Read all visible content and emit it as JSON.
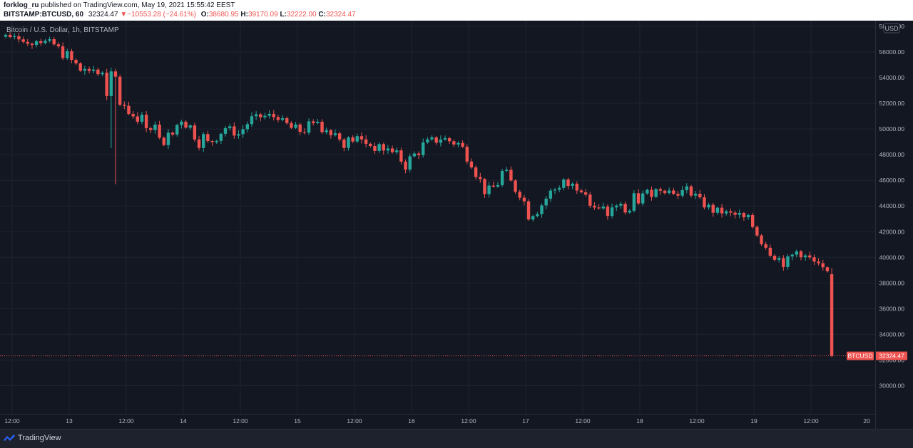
{
  "header": {
    "author": "forklog_ru",
    "published": "published on TradingView.com, May 19, 2021 15:55:42 EEST",
    "symbol": "BITSTAMP:BTCUSD, 60",
    "last": "32324.47",
    "change_arrow": "▼",
    "change": "−10553.28 (−24.61%)",
    "o_label": "O:",
    "o": "38680.95",
    "h_label": "H:",
    "h": "39170.09",
    "l_label": "L:",
    "l": "32222.00",
    "c_label": "C:",
    "c": "32324.47"
  },
  "footer": {
    "brand": "TradingView",
    "logo_icon": "tradingview-logo-icon"
  },
  "colors": {
    "background": "#131722",
    "grid": "#1f2331",
    "up": "#26a69a",
    "down": "#ef5350",
    "text": "#b2b5be",
    "price_tag": "#ef5350"
  },
  "chart_data": {
    "type": "candlestick",
    "title": "Bitcoin / U.S. Dollar, 1h, BITSTAMP",
    "currency": "USD",
    "symbol_tag": "BTCUSD",
    "last_price": 32324.47,
    "last_price_label": "32324.47",
    "ylim": [
      30000,
      60000
    ],
    "y_ticks": [
      30000,
      32000,
      34000,
      36000,
      38000,
      40000,
      42000,
      44000,
      46000,
      48000,
      50000,
      52000,
      54000,
      56000,
      58000
    ],
    "y_tick_labels": [
      "30000.00",
      "32000.00",
      "34000.00",
      "36000.00",
      "38000.00",
      "40000.00",
      "42000.00",
      "44000.00",
      "46000.00",
      "48000.00",
      "50000.00",
      "52000.00",
      "54000.00",
      "56000.00",
      "58000.00"
    ],
    "x_ticks": [
      "12:00",
      "13",
      "12:00",
      "14",
      "12:00",
      "15",
      "12:00",
      "16",
      "12:00",
      "17",
      "12:00",
      "18",
      "12:00",
      "19",
      "12:00",
      "20"
    ],
    "grid": true,
    "keypoints": [
      [
        0,
        57100,
        57400
      ],
      [
        3,
        56900,
        57200
      ],
      [
        6,
        56500,
        56800
      ],
      [
        10,
        56800,
        57000
      ],
      [
        14,
        55000,
        56200
      ],
      [
        17,
        54000,
        55200
      ],
      [
        20,
        54500,
        54800
      ],
      [
        22,
        53200,
        54800
      ],
      [
        23,
        49500,
        53500
      ],
      [
        25,
        50300,
        56200
      ],
      [
        29,
        50800,
        51300
      ],
      [
        33,
        49600,
        51200
      ],
      [
        36,
        48700,
        50000
      ],
      [
        40,
        50500,
        50800
      ],
      [
        44,
        48500,
        50700
      ],
      [
        46,
        48200,
        49400
      ],
      [
        50,
        49800,
        50400
      ],
      [
        53,
        49200,
        50000
      ],
      [
        56,
        50600,
        51100
      ],
      [
        60,
        50800,
        51300
      ],
      [
        62,
        50700,
        51000
      ],
      [
        66,
        49200,
        50400
      ],
      [
        70,
        49700,
        50800
      ],
      [
        74,
        49500,
        50300
      ],
      [
        77,
        48500,
        49400
      ],
      [
        80,
        49000,
        49600
      ],
      [
        84,
        48200,
        48900
      ],
      [
        88,
        48000,
        48700
      ],
      [
        91,
        46700,
        47800
      ],
      [
        95,
        48200,
        49200
      ],
      [
        99,
        48900,
        49700
      ],
      [
        103,
        48400,
        49300
      ],
      [
        106,
        47000,
        48300
      ],
      [
        108,
        45300,
        46500
      ],
      [
        110,
        44100,
        45600
      ],
      [
        113,
        45600,
        47400
      ],
      [
        117,
        44600,
        45400
      ],
      [
        119,
        42800,
        44500
      ],
      [
        121,
        43300,
        43900
      ],
      [
        124,
        44800,
        45400
      ],
      [
        127,
        45200,
        46200
      ],
      [
        131,
        45100,
        45800
      ],
      [
        133,
        44000,
        44800
      ],
      [
        136,
        42600,
        43800
      ],
      [
        139,
        43500,
        44400
      ],
      [
        142,
        43300,
        44900
      ],
      [
        146,
        44500,
        45400
      ],
      [
        149,
        45100,
        45600
      ],
      [
        153,
        44700,
        45300
      ],
      [
        156,
        44800,
        45800
      ],
      [
        158,
        44000,
        44700
      ],
      [
        161,
        43300,
        44000
      ],
      [
        165,
        43200,
        43600
      ],
      [
        169,
        42600,
        43300
      ],
      [
        171,
        41200,
        42600
      ],
      [
        174,
        40000,
        41200
      ],
      [
        177,
        39200,
        39800
      ],
      [
        180,
        40200,
        40700
      ],
      [
        183,
        39500,
        40200
      ],
      [
        186,
        38700,
        39300
      ],
      [
        188,
        32324,
        38681
      ]
    ]
  }
}
